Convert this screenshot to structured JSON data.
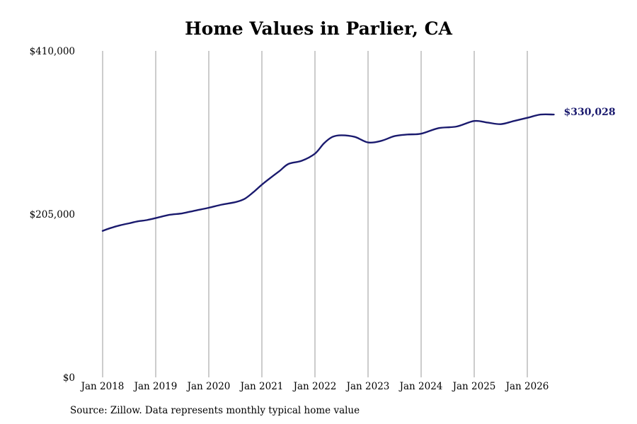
{
  "chart_data": {
    "type": "line",
    "title": "Home Values in Parlier, CA",
    "xlabel": "",
    "ylabel": "",
    "ylim": [
      0,
      410000
    ],
    "y_ticks": [
      {
        "value": 0,
        "label": "$0"
      },
      {
        "value": 205000,
        "label": "$205,000"
      },
      {
        "value": 410000,
        "label": "$410,000"
      }
    ],
    "x_ticks": [
      {
        "value": 2018,
        "label": "Jan 2018"
      },
      {
        "value": 2019,
        "label": "Jan 2019"
      },
      {
        "value": 2020,
        "label": "Jan 2020"
      },
      {
        "value": 2021,
        "label": "Jan 2021"
      },
      {
        "value": 2022,
        "label": "Jan 2022"
      },
      {
        "value": 2023,
        "label": "Jan 2023"
      },
      {
        "value": 2024,
        "label": "Jan 2024"
      },
      {
        "value": 2025,
        "label": "Jan 2025"
      },
      {
        "value": 2026,
        "label": "Jan 2026"
      }
    ],
    "xlim": [
      2018,
      2026.5
    ],
    "grid": "vertical",
    "line_color": "#1a1a6e",
    "grid_color": "#999999",
    "end_label": "$330,028",
    "series": [
      {
        "values": [
          {
            "x": 2018.0,
            "y": 184000
          },
          {
            "x": 2018.17,
            "y": 188000
          },
          {
            "x": 2018.33,
            "y": 191000
          },
          {
            "x": 2018.5,
            "y": 193500
          },
          {
            "x": 2018.67,
            "y": 196000
          },
          {
            "x": 2018.83,
            "y": 197500
          },
          {
            "x": 2019.0,
            "y": 200000
          },
          {
            "x": 2019.25,
            "y": 204000
          },
          {
            "x": 2019.5,
            "y": 206000
          },
          {
            "x": 2019.75,
            "y": 209500
          },
          {
            "x": 2020.0,
            "y": 213000
          },
          {
            "x": 2020.25,
            "y": 217000
          },
          {
            "x": 2020.5,
            "y": 220000
          },
          {
            "x": 2020.67,
            "y": 224000
          },
          {
            "x": 2020.83,
            "y": 232000
          },
          {
            "x": 2021.0,
            "y": 242000
          },
          {
            "x": 2021.17,
            "y": 251000
          },
          {
            "x": 2021.33,
            "y": 259000
          },
          {
            "x": 2021.5,
            "y": 268000
          },
          {
            "x": 2021.75,
            "y": 272000
          },
          {
            "x": 2022.0,
            "y": 281000
          },
          {
            "x": 2022.17,
            "y": 294000
          },
          {
            "x": 2022.33,
            "y": 302000
          },
          {
            "x": 2022.5,
            "y": 304000
          },
          {
            "x": 2022.75,
            "y": 302000
          },
          {
            "x": 2023.0,
            "y": 295000
          },
          {
            "x": 2023.25,
            "y": 297000
          },
          {
            "x": 2023.5,
            "y": 303000
          },
          {
            "x": 2023.75,
            "y": 305000
          },
          {
            "x": 2024.0,
            "y": 306000
          },
          {
            "x": 2024.33,
            "y": 313000
          },
          {
            "x": 2024.67,
            "y": 315000
          },
          {
            "x": 2025.0,
            "y": 322000
          },
          {
            "x": 2025.25,
            "y": 320000
          },
          {
            "x": 2025.5,
            "y": 318000
          },
          {
            "x": 2025.75,
            "y": 322000
          },
          {
            "x": 2026.0,
            "y": 326000
          },
          {
            "x": 2026.25,
            "y": 330000
          },
          {
            "x": 2026.5,
            "y": 330028
          }
        ]
      }
    ]
  },
  "footer": {
    "source": "Source: Zillow. Data represents monthly typical home value"
  }
}
